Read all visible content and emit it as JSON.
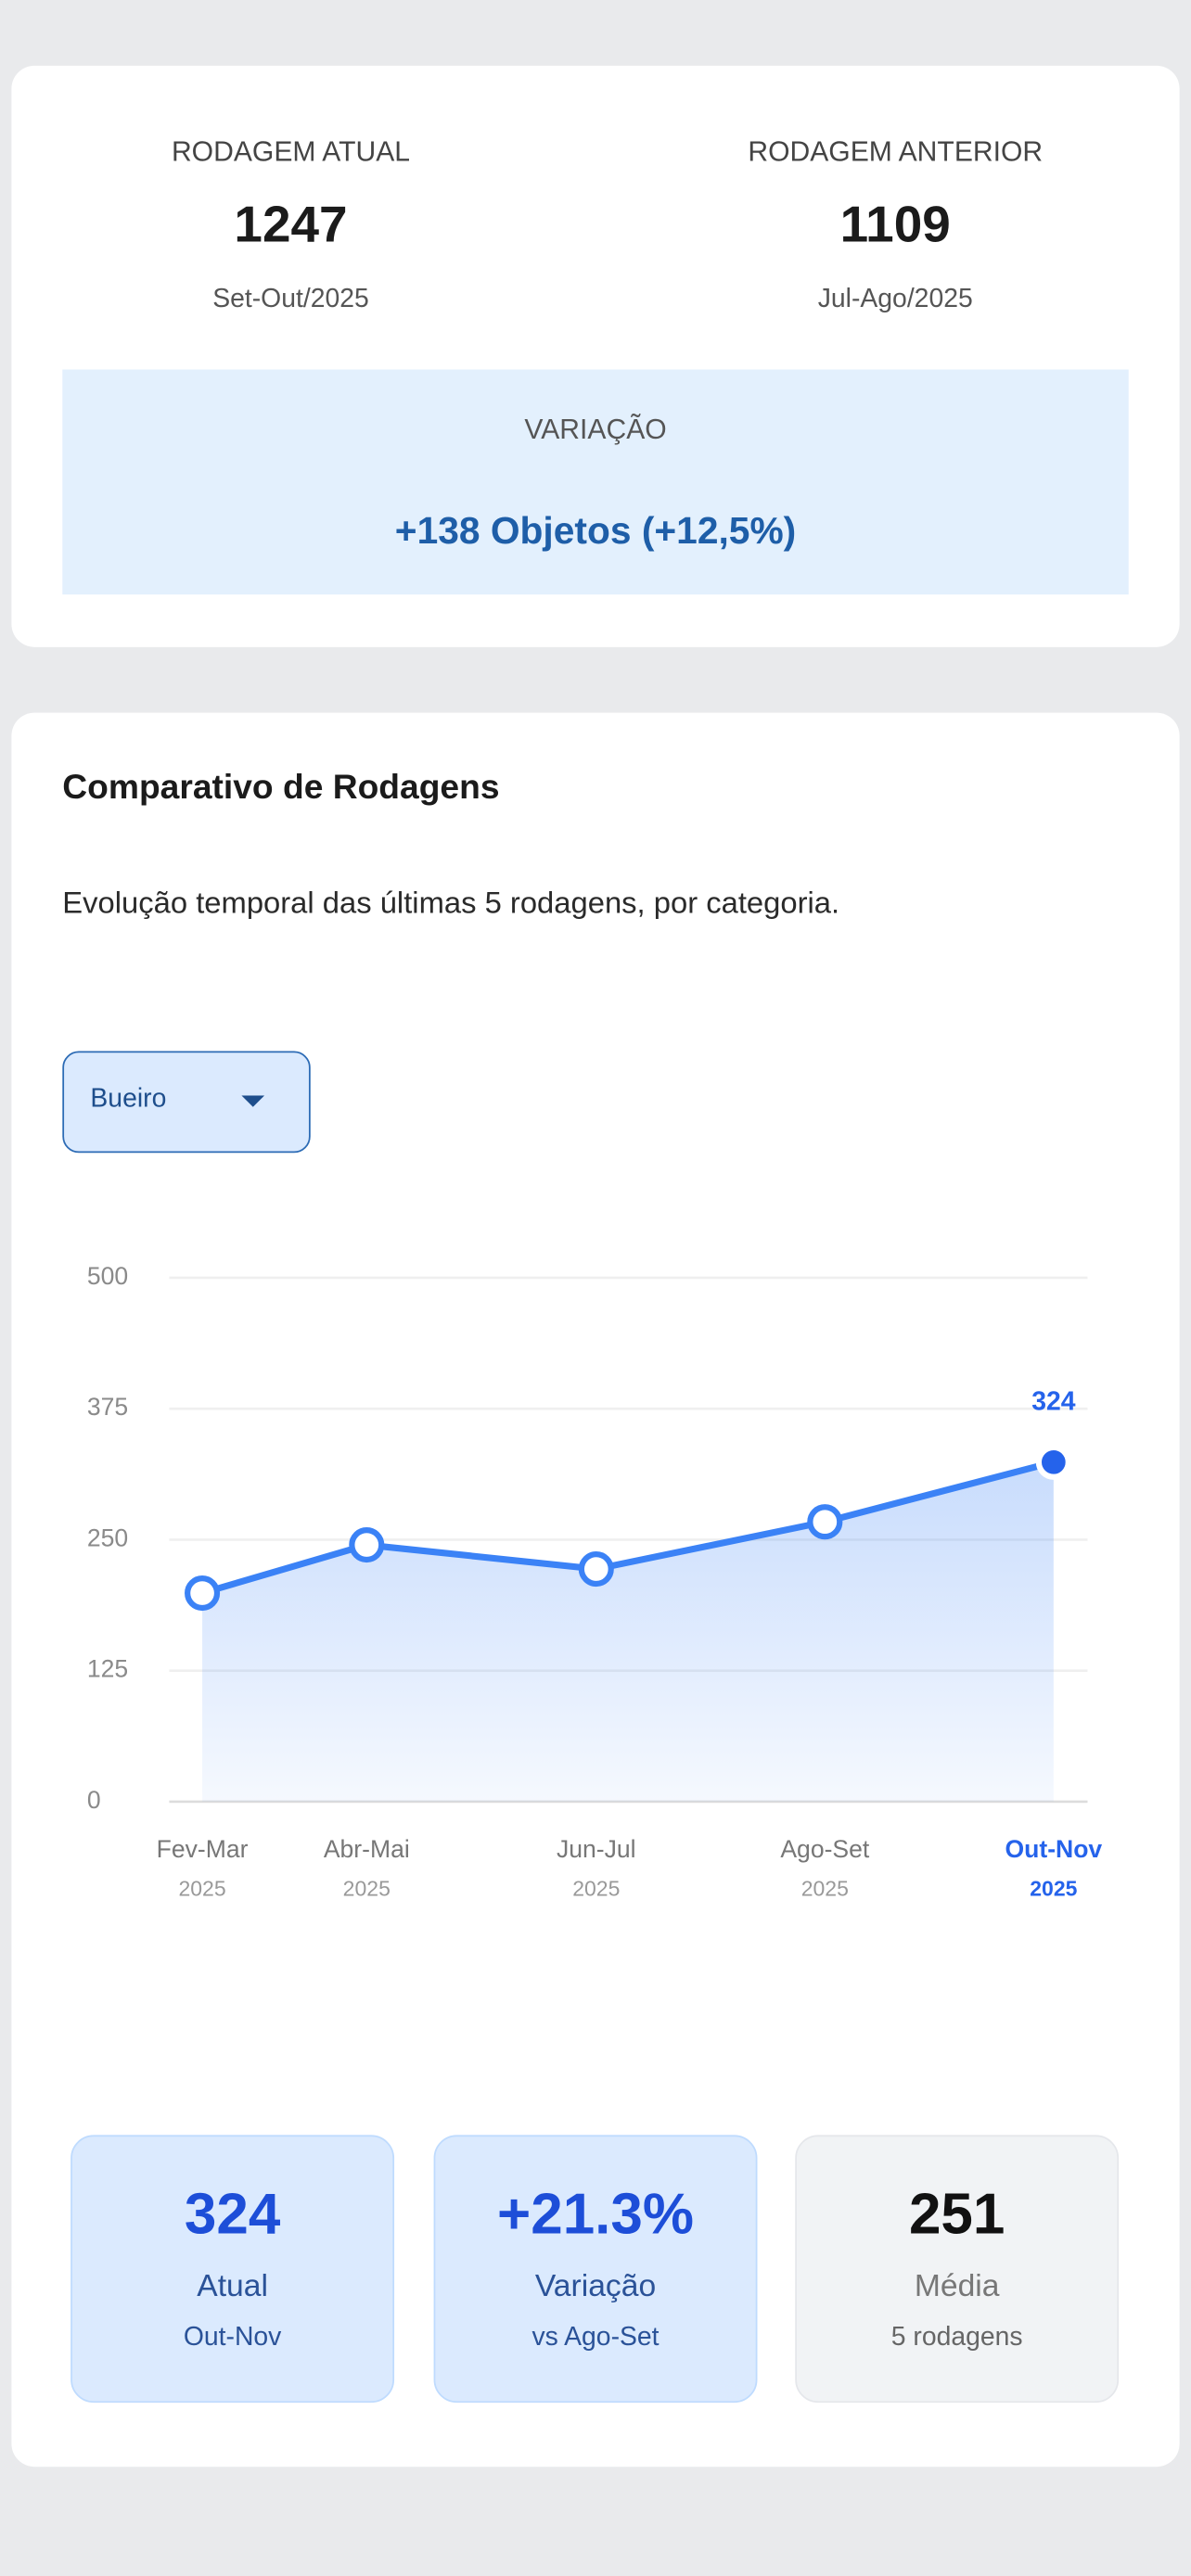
{
  "summary": {
    "current": {
      "label": "RODAGEM ATUAL",
      "value": "1247",
      "period": "Set-Out/2025"
    },
    "previous": {
      "label": "RODAGEM ANTERIOR",
      "value": "1109",
      "period": "Jul-Ago/2025"
    },
    "variation": {
      "label": "VARIAÇÃO",
      "value": "+138 Objetos (+12,5%)"
    }
  },
  "comparison": {
    "title": "Comparativo de Rodagens",
    "description": "Evolução temporal das últimas 5 rodagens, por categoria.",
    "filter": "Bueiro"
  },
  "chart_data": {
    "type": "line",
    "categories": [
      "Fev-Mar",
      "Abr-Mai",
      "Jun-Jul",
      "Ago-Set",
      "Out-Nov"
    ],
    "category_years": [
      "2025",
      "2025",
      "2025",
      "2025",
      "2025"
    ],
    "values": [
      199,
      245,
      222,
      267,
      324
    ],
    "color": "#3b82f6",
    "ylim": [
      0,
      500
    ],
    "yticks": [
      0,
      125,
      250,
      375,
      500
    ],
    "grid": true
  },
  "stats": [
    {
      "value": "324",
      "label": "Atual",
      "sub": "Out-Nov"
    },
    {
      "value": "+21.3%",
      "label": "Variação",
      "sub": "vs Ago-Set"
    },
    {
      "value": "251",
      "label": "Média",
      "sub": "5 rodagens"
    }
  ]
}
